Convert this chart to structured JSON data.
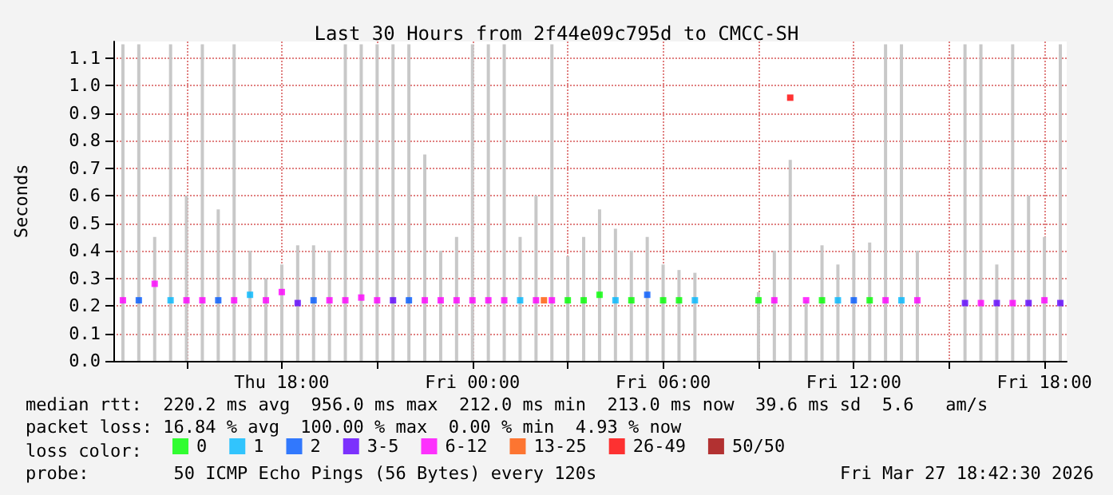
{
  "chart_data": {
    "type": "scatter",
    "title": "Last 30 Hours from 2f44e09c795d to CMCC-SH",
    "ylabel": "Seconds",
    "legend_title": "loss color:",
    "legend": "bottom",
    "grid": true,
    "marker": "square",
    "xlim": [
      "2026-03-26T12:42",
      "2026-03-27T18:42"
    ],
    "xticks": [
      {
        "value": "2026-03-26T15:00",
        "label": null
      },
      {
        "value": "2026-03-26T18:00",
        "label": "Thu 18:00"
      },
      {
        "value": "2026-03-26T21:00",
        "label": null
      },
      {
        "value": "2026-03-27T00:00",
        "label": "Fri 00:00"
      },
      {
        "value": "2026-03-27T03:00",
        "label": null
      },
      {
        "value": "2026-03-27T06:00",
        "label": "Fri 06:00"
      },
      {
        "value": "2026-03-27T09:00",
        "label": null
      },
      {
        "value": "2026-03-27T12:00",
        "label": "Fri 12:00"
      },
      {
        "value": "2026-03-27T15:00",
        "label": null
      },
      {
        "value": "2026-03-27T18:00",
        "label": "Fri 18:00"
      }
    ],
    "ylim": [
      0,
      1.16
    ],
    "yticks": [
      {
        "value": 0,
        "label": "0.0"
      },
      {
        "value": 0.1,
        "label": "0.1"
      },
      {
        "value": 0.2,
        "label": "0.2"
      },
      {
        "value": 0.3,
        "label": "0.3"
      },
      {
        "value": 0.4,
        "label": "0.4"
      },
      {
        "value": 0.5,
        "label": "0.5"
      },
      {
        "value": 0.6,
        "label": "0.6"
      },
      {
        "value": 0.7,
        "label": "0.7"
      },
      {
        "value": 0.8,
        "label": "0.8"
      },
      {
        "value": 0.9,
        "label": "0.9"
      },
      {
        "value": 1.0,
        "label": "1.0"
      },
      {
        "value": 1.1,
        "label": "1.1"
      }
    ],
    "series": [
      {
        "type": "bar",
        "color": "#c8c8c8",
        "x": [
          "2026-03-26T13:00",
          "2026-03-26T13:30",
          "2026-03-26T14:00",
          "2026-03-26T14:30",
          "2026-03-26T15:00",
          "2026-03-26T15:30",
          "2026-03-26T16:00",
          "2026-03-26T16:30",
          "2026-03-26T17:00",
          "2026-03-26T17:30",
          "2026-03-26T18:00",
          "2026-03-26T18:30",
          "2026-03-26T19:00",
          "2026-03-26T19:30",
          "2026-03-26T20:00",
          "2026-03-26T20:30",
          "2026-03-26T21:00",
          "2026-03-26T21:30",
          "2026-03-26T22:00",
          "2026-03-26T22:30",
          "2026-03-26T23:00",
          "2026-03-26T23:30",
          "2026-03-27T00:00",
          "2026-03-27T00:30",
          "2026-03-27T01:00",
          "2026-03-27T01:30",
          "2026-03-27T02:00",
          "2026-03-27T02:30",
          "2026-03-27T03:00",
          "2026-03-27T03:30",
          "2026-03-27T04:00",
          "2026-03-27T04:30",
          "2026-03-27T05:00",
          "2026-03-27T05:30",
          "2026-03-27T06:00",
          "2026-03-27T06:30",
          "2026-03-27T07:00",
          "2026-03-27T09:00",
          "2026-03-27T09:30",
          "2026-03-27T10:00",
          "2026-03-27T10:30",
          "2026-03-27T11:00",
          "2026-03-27T11:30",
          "2026-03-27T12:00",
          "2026-03-27T12:30",
          "2026-03-27T13:00",
          "2026-03-27T13:30",
          "2026-03-27T14:00",
          "2026-03-27T15:30",
          "2026-03-27T16:00",
          "2026-03-27T16:30",
          "2026-03-27T17:00",
          "2026-03-27T17:30",
          "2026-03-27T18:00",
          "2026-03-27T18:30"
        ],
        "values": [
          1.15,
          1.15,
          0.45,
          1.15,
          0.6,
          1.15,
          0.55,
          1.15,
          0.4,
          0.3,
          0.35,
          0.42,
          0.42,
          0.4,
          1.15,
          1.15,
          1.15,
          1.15,
          1.15,
          0.75,
          0.4,
          0.45,
          1.15,
          1.15,
          1.15,
          0.45,
          0.6,
          1.15,
          0.38,
          0.45,
          0.55,
          0.48,
          0.4,
          0.45,
          0.35,
          0.33,
          0.32,
          0.25,
          0.4,
          0.73,
          0.22,
          0.42,
          0.35,
          0.4,
          0.43,
          1.15,
          1.15,
          0.4,
          1.15,
          1.15,
          0.35,
          1.15,
          0.6,
          0.45,
          1.15
        ]
      },
      {
        "name": "0",
        "color": "#00ff00",
        "x": [
          "2026-03-27T03:00",
          "2026-03-27T03:30",
          "2026-03-27T04:00",
          "2026-03-27T05:00",
          "2026-03-27T06:00",
          "2026-03-27T06:30",
          "2026-03-27T09:00",
          "2026-03-27T11:00",
          "2026-03-27T12:30"
        ],
        "values": [
          0.22,
          0.22,
          0.24,
          0.22,
          0.22,
          0.22,
          0.22,
          0.22,
          0.22
        ]
      },
      {
        "name": "1",
        "color": "#00b8ff",
        "x": [
          "2026-03-26T14:30",
          "2026-03-26T17:00",
          "2026-03-27T01:30",
          "2026-03-27T04:30",
          "2026-03-27T07:00",
          "2026-03-27T11:30",
          "2026-03-27T13:30"
        ],
        "values": [
          0.22,
          0.24,
          0.22,
          0.22,
          0.22,
          0.22,
          0.22
        ]
      },
      {
        "name": "2",
        "color": "#0059ff",
        "x": [
          "2026-03-26T13:30",
          "2026-03-26T16:00",
          "2026-03-26T19:00",
          "2026-03-26T22:00",
          "2026-03-27T05:30",
          "2026-03-27T12:00"
        ],
        "values": [
          0.22,
          0.22,
          0.22,
          0.22,
          0.24,
          0.22
        ]
      },
      {
        "name": "3-5",
        "color": "#5e00ff",
        "x": [
          "2026-03-26T18:30",
          "2026-03-26T21:30",
          "2026-03-27T15:30",
          "2026-03-27T16:30",
          "2026-03-27T17:30",
          "2026-03-27T18:30"
        ],
        "values": [
          0.21,
          0.22,
          0.21,
          0.21,
          0.21,
          0.21
        ]
      },
      {
        "name": "6-12",
        "color": "#ff00ff",
        "x": [
          "2026-03-26T13:00",
          "2026-03-26T14:00",
          "2026-03-26T15:00",
          "2026-03-26T15:30",
          "2026-03-26T16:30",
          "2026-03-26T17:30",
          "2026-03-26T18:00",
          "2026-03-26T19:30",
          "2026-03-26T20:00",
          "2026-03-26T20:30",
          "2026-03-26T21:00",
          "2026-03-26T22:30",
          "2026-03-26T23:00",
          "2026-03-26T23:30",
          "2026-03-27T00:00",
          "2026-03-27T00:30",
          "2026-03-27T01:00",
          "2026-03-27T02:00",
          "2026-03-27T02:30",
          "2026-03-27T09:30",
          "2026-03-27T10:30",
          "2026-03-27T13:00",
          "2026-03-27T14:00",
          "2026-03-27T16:00",
          "2026-03-27T17:00",
          "2026-03-27T18:00"
        ],
        "values": [
          0.22,
          0.28,
          0.22,
          0.22,
          0.22,
          0.22,
          0.25,
          0.22,
          0.22,
          0.23,
          0.22,
          0.22,
          0.22,
          0.22,
          0.22,
          0.22,
          0.22,
          0.22,
          0.22,
          0.22,
          0.22,
          0.22,
          0.22,
          0.21,
          0.21,
          0.22
        ]
      },
      {
        "name": "13-25",
        "color": "#ff5500",
        "x": [
          "2026-03-27T02:15"
        ],
        "values": [
          0.22
        ]
      },
      {
        "name": "26-49",
        "color": "#ff0000",
        "x": [
          "2026-03-27T10:00"
        ],
        "values": [
          0.956
        ]
      },
      {
        "name": "50/50",
        "color": "#a10000"
      }
    ],
    "annotations": [
      "median rtt:  220.2 ms avg  956.0 ms max  212.0 ms min  213.0 ms now  39.6 ms sd  5.6   am/s",
      "packet loss: 16.84 % avg  100.00 % max  0.00 % min  4.93 % now",
      "probe:        50 ICMP Echo Pings (56 Bytes) every 120s",
      "Fri Mar 27 18:42:30 2026"
    ]
  }
}
